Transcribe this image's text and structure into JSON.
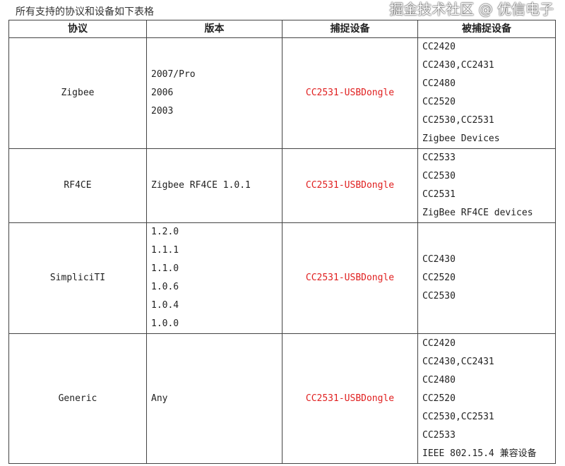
{
  "caption": "所有支持的协议和设备如下表格",
  "headers": [
    "协议",
    "版本",
    "捕捉设备",
    "被捕捉设备"
  ],
  "rows": [
    {
      "protocol": "Zigbee",
      "versions": [
        "2007/Pro",
        "2006",
        "2003"
      ],
      "capture": "CC2531-USBDongle",
      "targets": [
        "CC2420",
        "CC2430,CC2431",
        "CC2480",
        "CC2520",
        "CC2530,CC2531",
        "Zigbee Devices"
      ]
    },
    {
      "protocol": "RF4CE",
      "versions": [
        "Zigbee RF4CE 1.0.1"
      ],
      "capture": "CC2531-USBDongle",
      "targets": [
        "CC2533",
        "CC2530",
        "CC2531",
        "ZigBee RF4CE devices"
      ]
    },
    {
      "protocol": "SimpliciTI",
      "versions": [
        "1.2.0",
        "1.1.1",
        "1.1.0",
        "1.0.6",
        "1.0.4",
        "1.0.0"
      ],
      "capture": "CC2531-USBDongle",
      "targets": [
        "CC2430",
        "CC2520",
        "CC2530"
      ]
    },
    {
      "protocol": "Generic",
      "versions": [
        "Any"
      ],
      "capture": "CC2531-USBDongle",
      "targets": [
        "CC2420",
        "CC2430,CC2431",
        "CC2480",
        "CC2520",
        "CC2530,CC2531",
        "CC2533",
        "IEEE 802.15.4 兼容设备"
      ]
    }
  ],
  "watermark": "掘金技术社区 @ 优信电子",
  "colors": {
    "capture_text": "#e02020"
  }
}
